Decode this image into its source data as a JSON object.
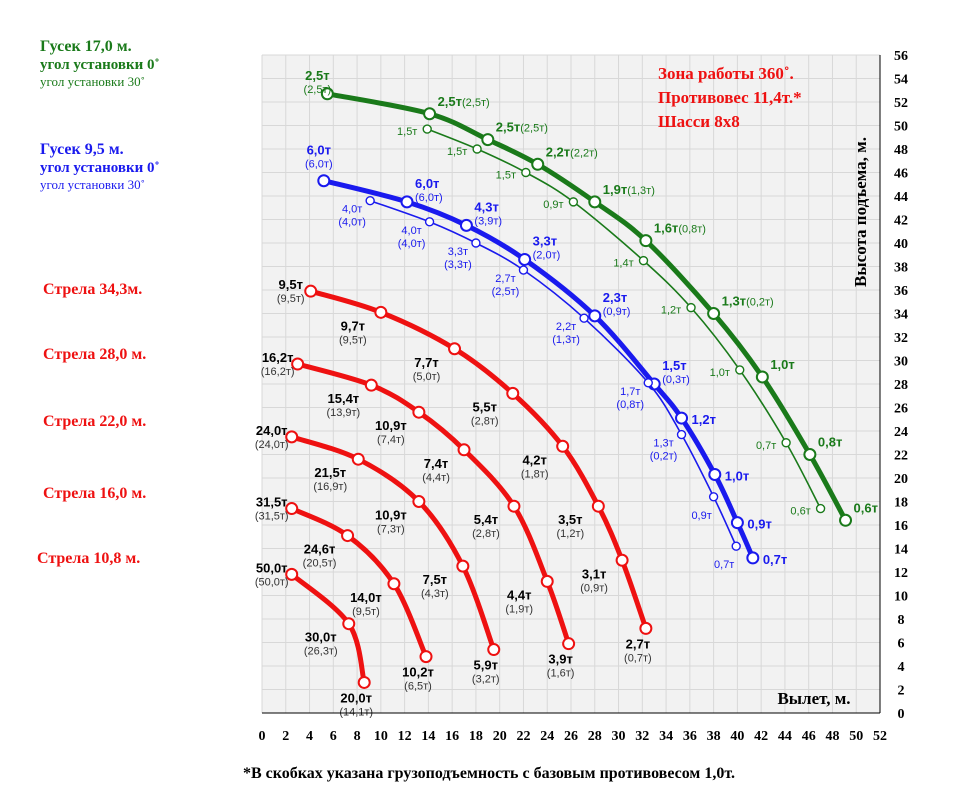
{
  "legend": {
    "jib17_title": "Гусек 17,0 м.",
    "jib17_angle0": "угол установки 0˚",
    "jib17_angle30": "угол установки 30˚",
    "jib95_title": "Гусек 9,5 м.",
    "jib95_angle0": "угол установки 0˚",
    "jib95_angle30": "угол установки 30˚",
    "boom343": "Стрела 34,3м.",
    "boom280": "Стрела 28,0 м.",
    "boom220": "Стрела 22,0 м.",
    "boom160": "Стрела 16,0 м.",
    "boom108": "Стрела 10,8 м."
  },
  "info": {
    "line1": "Зона работы 360˚.",
    "line2": "Противовес 11,4т.*",
    "line3": "Шасси 8х8"
  },
  "footnote": "*В скобках указана грузоподъемность с базовым противовесом 1,0т.",
  "colors": {
    "red": "#ee1111",
    "green": "#1a7a1a",
    "blue": "#1a1aee",
    "grid": "#d8d8d8",
    "plotbg": "#f2f2f2"
  },
  "chart_data": {
    "type": "line",
    "xlabel": "Вылет, м.",
    "ylabel": "Высота подъема, м.",
    "xlim": [
      0,
      52
    ],
    "ylim": [
      0,
      56
    ],
    "xticks": [
      "0",
      "2",
      "4",
      "6",
      "8",
      "10",
      "12",
      "14",
      "16",
      "18",
      "20",
      "22",
      "24",
      "26",
      "28",
      "30",
      "32",
      "34",
      "36",
      "38",
      "40",
      "42",
      "44",
      "46",
      "48",
      "50",
      "52"
    ],
    "yticks": [
      "0",
      "2",
      "4",
      "6",
      "8",
      "10",
      "12",
      "14",
      "16",
      "18",
      "20",
      "22",
      "24",
      "26",
      "28",
      "30",
      "32",
      "34",
      "36",
      "38",
      "40",
      "42",
      "44",
      "46",
      "48",
      "50",
      "52",
      "54",
      "56"
    ],
    "series": [
      {
        "name": "Стрела 10,8 м.",
        "color": "red",
        "style": "thick",
        "points": [
          {
            "x": 2.5,
            "y": 11.8,
            "label": "50,0т",
            "sub": "(50,0т)"
          },
          {
            "x": 7.3,
            "y": 7.6,
            "label": "30,0т",
            "sub": "(26,3т)"
          },
          {
            "x": 8.6,
            "y": 2.6,
            "label": "20,0т",
            "sub": "(14,1т)"
          }
        ]
      },
      {
        "name": "Стрела 16,0 м.",
        "color": "red",
        "style": "thick",
        "points": [
          {
            "x": 2.5,
            "y": 17.4,
            "label": "31,5т",
            "sub": "(31,5т)"
          },
          {
            "x": 7.2,
            "y": 15.1,
            "label": "24,6т",
            "sub": "(20,5т)"
          },
          {
            "x": 11.1,
            "y": 11.0,
            "label": "14,0т",
            "sub": "(9,5т)"
          },
          {
            "x": 13.8,
            "y": 4.8,
            "label": "10,2т",
            "sub": "(6,5т)"
          }
        ]
      },
      {
        "name": "Стрела 22,0 м.",
        "color": "red",
        "style": "thick",
        "points": [
          {
            "x": 2.5,
            "y": 23.5,
            "label": "24,0т",
            "sub": "(24,0т)"
          },
          {
            "x": 8.1,
            "y": 21.6,
            "label": "21,5т",
            "sub": "(16,9т)"
          },
          {
            "x": 13.2,
            "y": 18.0,
            "label": "10,9т",
            "sub": "(7,3т)"
          },
          {
            "x": 16.9,
            "y": 12.5,
            "label": "7,5т",
            "sub": "(4,3т)"
          },
          {
            "x": 19.5,
            "y": 5.4,
            "label": "5,9т",
            "sub": "(3,2т)"
          }
        ]
      },
      {
        "name": "Стрела 28,0 м.",
        "color": "red",
        "style": "thick",
        "points": [
          {
            "x": 3.0,
            "y": 29.7,
            "label": "16,2т",
            "sub": "(16,2т)"
          },
          {
            "x": 9.2,
            "y": 27.9,
            "label": "15,4т",
            "sub": "(13,9т)"
          },
          {
            "x": 13.2,
            "y": 25.6,
            "label": "10,9т",
            "sub": "(7,4т)"
          },
          {
            "x": 17.0,
            "y": 22.4,
            "label": "7,4т",
            "sub": "(4,4т)"
          },
          {
            "x": 21.2,
            "y": 17.6,
            "label": "5,4т",
            "sub": "(2,8т)"
          },
          {
            "x": 24.0,
            "y": 11.2,
            "label": "4,4т",
            "sub": "(1,9т)"
          },
          {
            "x": 25.8,
            "y": 5.9,
            "label": "3,9т",
            "sub": "(1,6т)"
          }
        ]
      },
      {
        "name": "Стрела 34,3м.",
        "color": "red",
        "style": "thick",
        "points": [
          {
            "x": 4.1,
            "y": 35.9,
            "label": "9,5т",
            "sub": "(9,5т)"
          },
          {
            "x": 10.0,
            "y": 34.1,
            "label": "9,7т",
            "sub": "(9,5т)"
          },
          {
            "x": 16.2,
            "y": 31.0,
            "label": "7,7т",
            "sub": "(5,0т)"
          },
          {
            "x": 21.1,
            "y": 27.2,
            "label": "5,5т",
            "sub": "(2,8т)"
          },
          {
            "x": 25.3,
            "y": 22.7,
            "label": "4,2т",
            "sub": "(1,8т)"
          },
          {
            "x": 28.3,
            "y": 17.6,
            "label": "3,5т",
            "sub": "(1,2т)"
          },
          {
            "x": 30.3,
            "y": 13.0,
            "label": "3,1т",
            "sub": "(0,9т)"
          },
          {
            "x": 32.3,
            "y": 7.2,
            "label": "2,7т",
            "sub": "(0,7т)"
          }
        ]
      },
      {
        "name": "Гусек 9,5 м. угол установки 0˚",
        "color": "blue",
        "style": "thick",
        "points": [
          {
            "x": 5.2,
            "y": 45.3,
            "label": "6,0т",
            "sub": "(6,0т)"
          },
          {
            "x": 12.2,
            "y": 43.5,
            "label": "6,0т",
            "sub": "(6,0т)"
          },
          {
            "x": 17.2,
            "y": 41.5,
            "label": "4,3т",
            "sub": "(3,9т)"
          },
          {
            "x": 22.1,
            "y": 38.6,
            "label": "3,3т",
            "sub": "(2,0т)"
          },
          {
            "x": 28.0,
            "y": 33.8,
            "label": "2,3т",
            "sub": "(0,9т)"
          },
          {
            "x": 33.0,
            "y": 28.0,
            "label": "1,5т",
            "sub": "(0,3т)"
          },
          {
            "x": 35.3,
            "y": 25.1,
            "label": "1,2т",
            "sub": ""
          },
          {
            "x": 38.1,
            "y": 20.3,
            "label": "1,0т",
            "sub": ""
          },
          {
            "x": 40.0,
            "y": 16.2,
            "label": "0,9т",
            "sub": ""
          },
          {
            "x": 41.3,
            "y": 13.2,
            "label": "0,7т",
            "sub": ""
          }
        ]
      },
      {
        "name": "Гусек 9,5 м. угол установки 30˚",
        "color": "blue",
        "style": "thin",
        "points": [
          {
            "x": 9.1,
            "y": 43.6,
            "label": "4,0т",
            "sub": "(4,0т)"
          },
          {
            "x": 14.1,
            "y": 41.8,
            "label": "4,0т",
            "sub": "(4,0т)"
          },
          {
            "x": 18.0,
            "y": 40.0,
            "label": "3,3т",
            "sub": "(3,3т)"
          },
          {
            "x": 22.0,
            "y": 37.7,
            "label": "2,7т",
            "sub": "(2,5т)"
          },
          {
            "x": 27.1,
            "y": 33.6,
            "label": "2,2т",
            "sub": "(1,3т)"
          },
          {
            "x": 32.5,
            "y": 28.1,
            "label": "1,7т",
            "sub": "(0,8т)"
          },
          {
            "x": 35.3,
            "y": 23.7,
            "label": "1,3т",
            "sub": "(0,2т)"
          },
          {
            "x": 38.0,
            "y": 18.4,
            "label": "0,9т",
            "sub": ""
          },
          {
            "x": 39.9,
            "y": 14.2,
            "label": "0,7т",
            "sub": ""
          }
        ]
      },
      {
        "name": "Гусек 17,0 м. угол установки 0˚",
        "color": "green",
        "style": "thick",
        "points": [
          {
            "x": 5.5,
            "y": 52.7,
            "label": "2,5т",
            "sub": "(2,5т)"
          },
          {
            "x": 14.1,
            "y": 51.0,
            "label": "2,5т",
            "sub": "(2,5т)"
          },
          {
            "x": 19.0,
            "y": 48.8,
            "label": "2,5т",
            "sub": "(2,5т)"
          },
          {
            "x": 23.2,
            "y": 46.7,
            "label": "2,2т",
            "sub": "(2,2т)"
          },
          {
            "x": 28.0,
            "y": 43.5,
            "label": "1,9т",
            "sub": "(1,3т)"
          },
          {
            "x": 32.3,
            "y": 40.2,
            "label": "1,6т",
            "sub": "(0,8т)"
          },
          {
            "x": 38.0,
            "y": 34.0,
            "label": "1,3т",
            "sub": "(0,2т)"
          },
          {
            "x": 42.1,
            "y": 28.6,
            "label": "1,0т",
            "sub": ""
          },
          {
            "x": 46.1,
            "y": 22.0,
            "label": "0,8т",
            "sub": ""
          },
          {
            "x": 49.1,
            "y": 16.4,
            "label": "0,6т",
            "sub": ""
          }
        ]
      },
      {
        "name": "Гусек 17,0 м. угол установки 30˚",
        "color": "green",
        "style": "thin",
        "points": [
          {
            "x": 13.9,
            "y": 49.7,
            "label": "1,5т",
            "sub": ""
          },
          {
            "x": 18.1,
            "y": 48.0,
            "label": "1,5т",
            "sub": ""
          },
          {
            "x": 22.2,
            "y": 46.0,
            "label": "1,5т",
            "sub": ""
          },
          {
            "x": 26.2,
            "y": 43.5,
            "label": "0,9т",
            "sub": ""
          },
          {
            "x": 32.1,
            "y": 38.5,
            "label": "1,4т",
            "sub": ""
          },
          {
            "x": 36.1,
            "y": 34.5,
            "label": "1,2т",
            "sub": ""
          },
          {
            "x": 40.2,
            "y": 29.2,
            "label": "1,0т",
            "sub": ""
          },
          {
            "x": 44.1,
            "y": 23.0,
            "label": "0,7т",
            "sub": ""
          },
          {
            "x": 47.0,
            "y": 17.4,
            "label": "0,6т",
            "sub": ""
          }
        ]
      }
    ]
  }
}
